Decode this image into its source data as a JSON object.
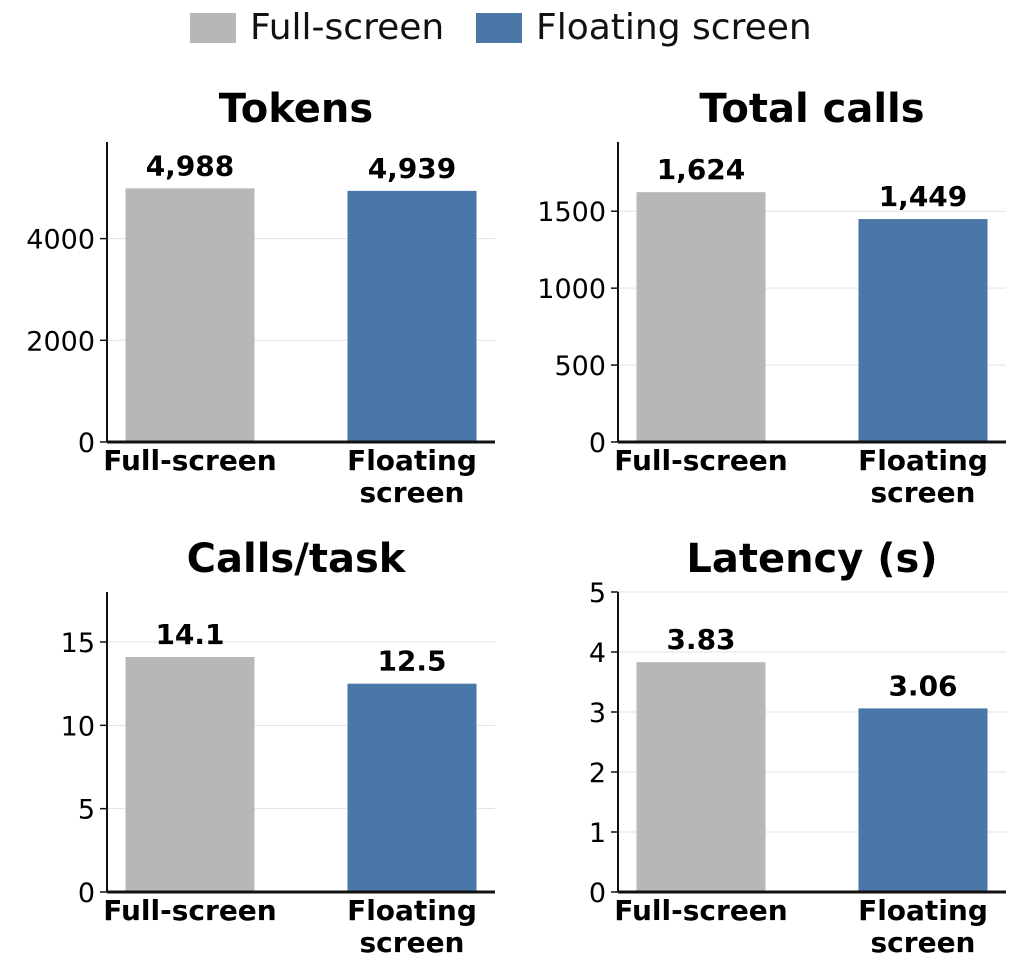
{
  "legend": [
    {
      "label": "Full-screen",
      "color": "#b7b7b7"
    },
    {
      "label": "Floating screen",
      "color": "#4a76a8"
    }
  ],
  "chart_data": [
    {
      "type": "bar",
      "title": "Tokens",
      "categories": [
        "Full-screen",
        "Floating screen"
      ],
      "values": [
        4988,
        4939
      ],
      "data_labels": [
        "4,988",
        "4,939"
      ],
      "colors": [
        "#b7b7b7",
        "#4a76a8"
      ],
      "ylim": [
        0,
        5900
      ],
      "yticks": [
        0,
        2000,
        4000
      ],
      "grid": true
    },
    {
      "type": "bar",
      "title": "Total calls",
      "categories": [
        "Full-screen",
        "Floating screen"
      ],
      "values": [
        1624,
        1449
      ],
      "data_labels": [
        "1,624",
        "1,449"
      ],
      "colors": [
        "#b7b7b7",
        "#4a76a8"
      ],
      "ylim": [
        0,
        1950
      ],
      "yticks": [
        0,
        500,
        1000,
        1500
      ],
      "grid": true
    },
    {
      "type": "bar",
      "title": "Calls/task",
      "categories": [
        "Full-screen",
        "Floating screen"
      ],
      "values": [
        14.1,
        12.5
      ],
      "data_labels": [
        "14.1",
        "12.5"
      ],
      "colors": [
        "#b7b7b7",
        "#4a76a8"
      ],
      "ylim": [
        0,
        18
      ],
      "yticks": [
        0,
        5,
        10,
        15
      ],
      "grid": true
    },
    {
      "type": "bar",
      "title": "Latency (s)",
      "categories": [
        "Full-screen",
        "Floating screen"
      ],
      "values": [
        3.83,
        3.06
      ],
      "data_labels": [
        "3.83",
        "3.06"
      ],
      "colors": [
        "#b7b7b7",
        "#4a76a8"
      ],
      "ylim": [
        0,
        5
      ],
      "yticks": [
        0,
        1,
        2,
        3,
        4,
        5
      ],
      "grid": true
    }
  ]
}
